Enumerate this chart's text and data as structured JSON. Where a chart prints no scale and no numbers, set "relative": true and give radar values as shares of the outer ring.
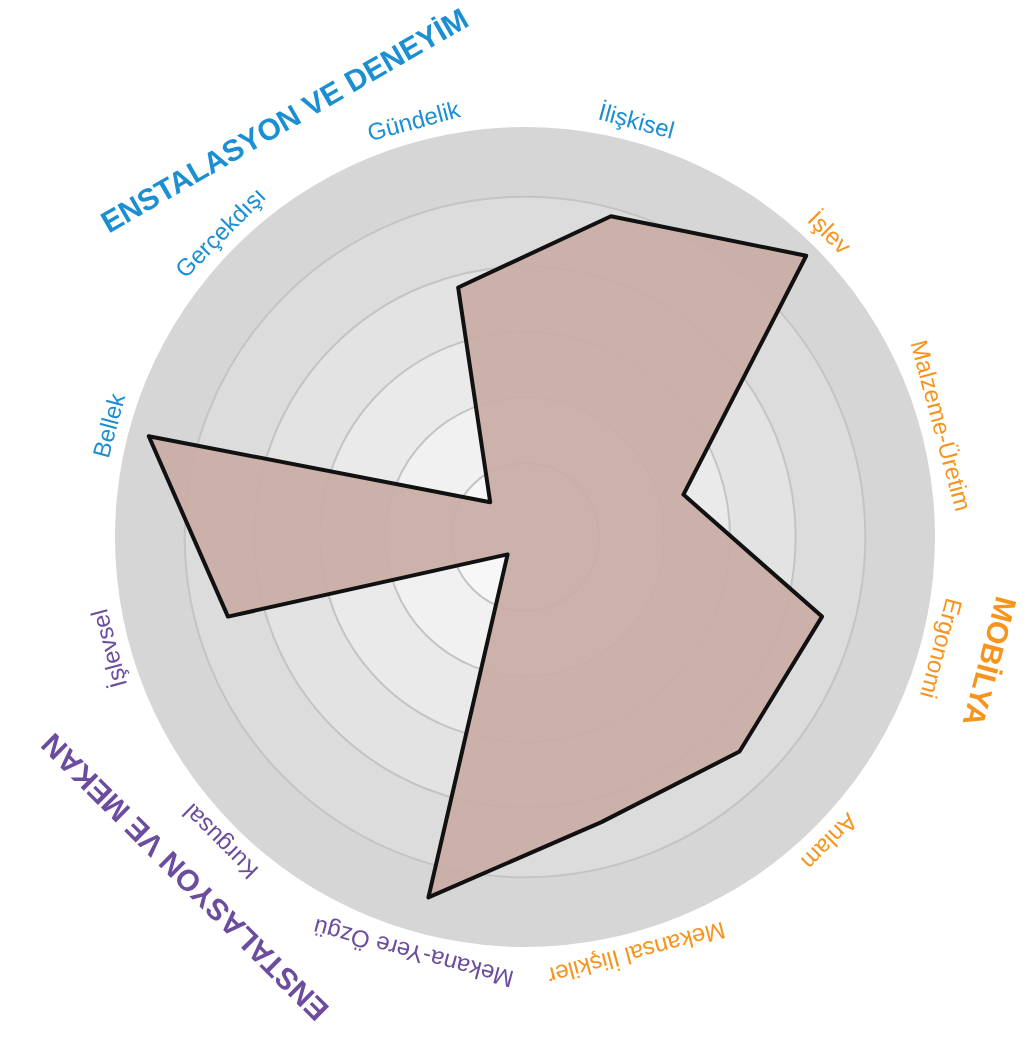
{
  "chart_data": {
    "type": "radar",
    "relative": true,
    "grid": true,
    "categories": [
      "İlişkisel",
      "İşlev",
      "Malzeme-Üretim",
      "Ergonomi",
      "Anlam",
      "Mekansal İlişkiler",
      "Mekana-Yere Özgü",
      "Kurgusal",
      "İşlevsel",
      "Bellek",
      "Gerçekdışı",
      "Gündelik"
    ],
    "colors": [
      "#1b8fd2",
      "#f7941d",
      "#f7941d",
      "#f7941d",
      "#f7941d",
      "#f7941d",
      "#6b4c9e",
      "#6b4c9e",
      "#6b4c9e",
      "#1b8fd2",
      "#1b8fd2",
      "#1b8fd2"
    ],
    "annotations": [
      "ENSTALASYON VE DENEYİM",
      "MOBİLYA",
      "ENSTALASYON VE MEKAN"
    ],
    "series": [
      {
        "color": "#c9aea6",
        "values": [
          0.81,
          0.97,
          0.4,
          0.75,
          0.74,
          0.72,
          0.91,
          0.06,
          0.75,
          0.95,
          0.12,
          0.63
        ]
      }
    ]
  }
}
